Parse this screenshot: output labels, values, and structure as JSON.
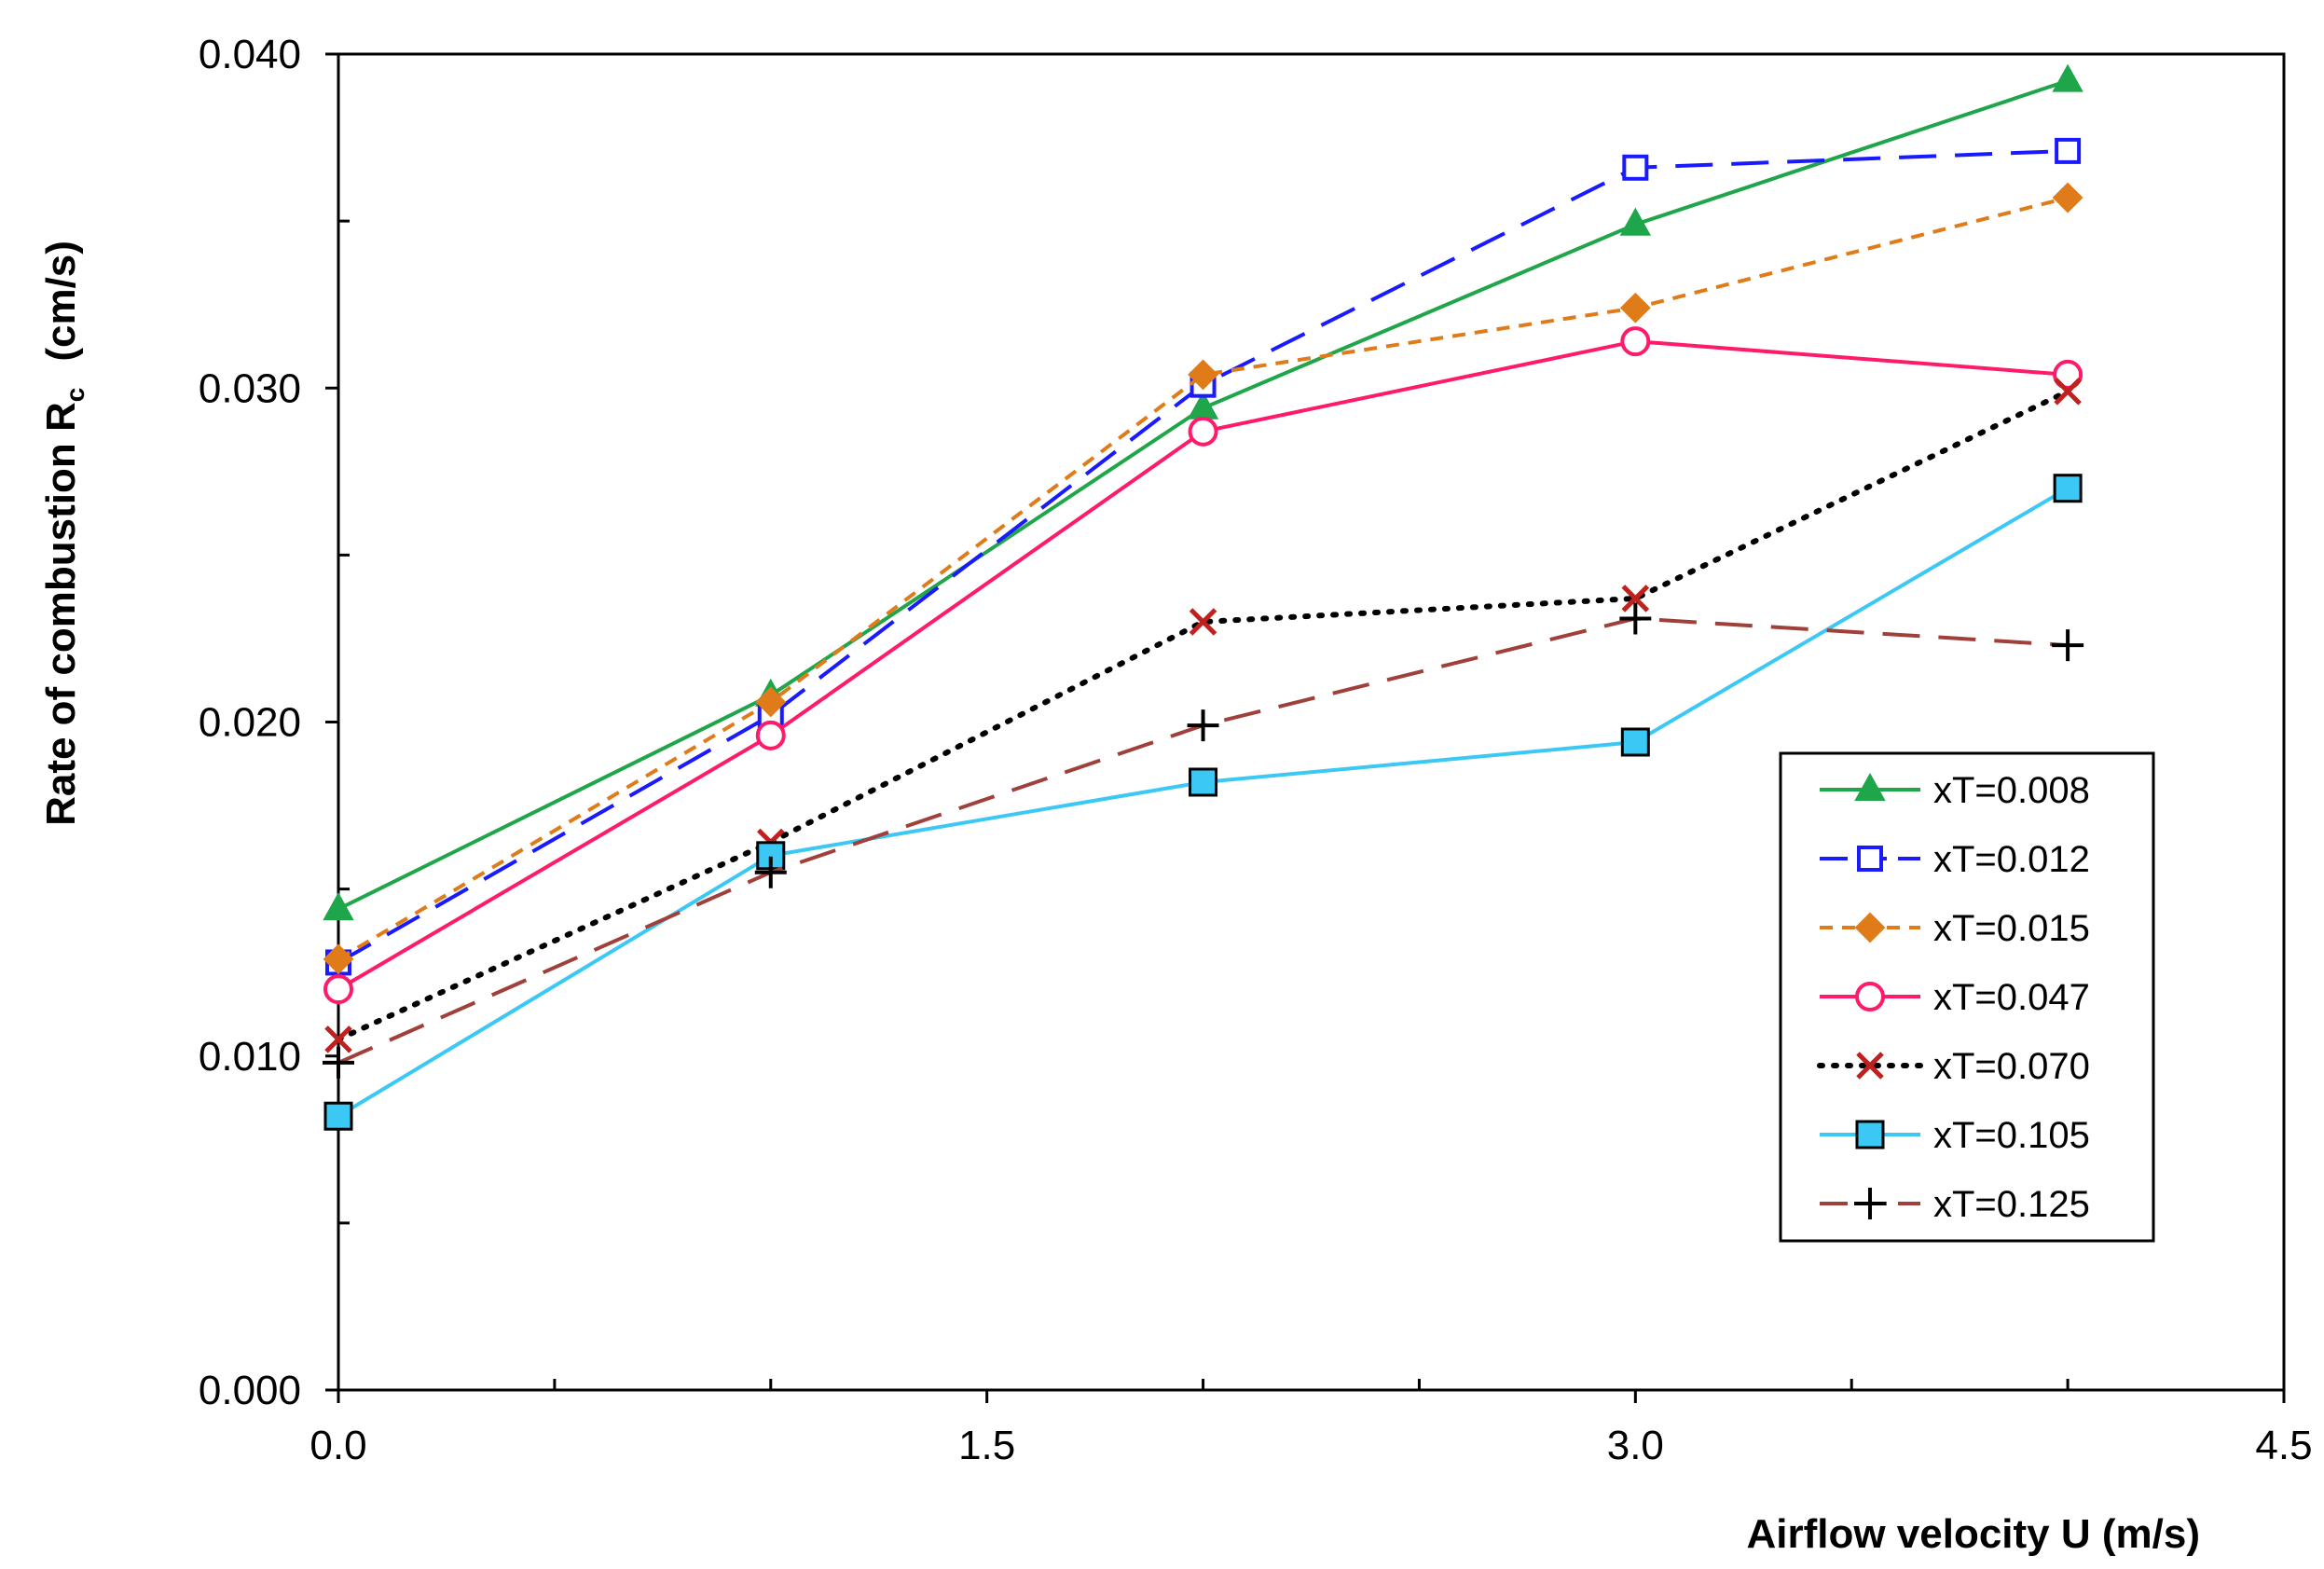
{
  "chart_data": {
    "type": "line",
    "xlabel": "Airflow velocity U  (m/s)",
    "ylabel_main": "Rate of combustion R",
    "ylabel_subscript": "c",
    "ylabel_unit": "(cm/s)",
    "xlim": [
      0,
      4.5
    ],
    "ylim": [
      0,
      0.04
    ],
    "x_ticks": [
      0,
      1.5,
      3.0,
      4.5
    ],
    "x_tick_labels": [
      "0.0",
      "1.5",
      "3.0",
      "4.5"
    ],
    "x_minor_ticks": [
      0.5,
      1.0,
      2.0,
      2.5,
      3.5,
      4.0
    ],
    "y_ticks": [
      0,
      0.01,
      0.02,
      0.03,
      0.04
    ],
    "y_tick_labels": [
      "0.000",
      "0.010",
      "0.020",
      "0.030",
      "0.040"
    ],
    "y_minor_ticks": [
      0.005,
      0.015,
      0.025,
      0.035
    ],
    "grid": false,
    "legend_position": "right",
    "series": [
      {
        "name": "xT=0.008",
        "color": "#1fa64a",
        "dash": "",
        "marker": "triangle",
        "x": [
          0,
          1,
          2,
          3,
          4
        ],
        "y": [
          0.0144,
          0.0208,
          0.0294,
          0.0349,
          0.0392
        ]
      },
      {
        "name": "xT=0.012",
        "color": "#1a1aff",
        "dash": "40,20",
        "marker": "square-open",
        "x": [
          0,
          1,
          2,
          3,
          4
        ],
        "y": [
          0.0128,
          0.0202,
          0.0301,
          0.0366,
          0.0371
        ]
      },
      {
        "name": "xT=0.015",
        "color": "#e07b1a",
        "dash": "14,10",
        "marker": "diamond",
        "x": [
          0,
          1,
          2,
          3,
          4
        ],
        "y": [
          0.0129,
          0.0206,
          0.0304,
          0.0324,
          0.0357
        ]
      },
      {
        "name": "xT=0.047",
        "color": "#ff1a6b",
        "dash": "",
        "marker": "circle-open",
        "x": [
          0,
          1,
          2,
          3,
          4
        ],
        "y": [
          0.012,
          0.0196,
          0.0287,
          0.0314,
          0.0304
        ]
      },
      {
        "name": "xT=0.070",
        "color": "#000000",
        "dash": "3,12",
        "marker": "x",
        "x": [
          0,
          1,
          2,
          3,
          4
        ],
        "y": [
          0.0105,
          0.0164,
          0.023,
          0.0237,
          0.0299
        ]
      },
      {
        "name": "xT=0.105",
        "color": "#3cc8f5",
        "dash": "",
        "marker": "square-filled",
        "x": [
          0,
          1,
          2,
          3,
          4
        ],
        "y": [
          0.0082,
          0.016,
          0.0182,
          0.0194,
          0.027
        ]
      },
      {
        "name": "xT=0.125",
        "color": "#a0403a",
        "dash": "40,20",
        "marker": "plus",
        "x": [
          0,
          1,
          2,
          3,
          4
        ],
        "y": [
          0.0098,
          0.0155,
          0.0199,
          0.0231,
          0.0223
        ]
      }
    ]
  }
}
